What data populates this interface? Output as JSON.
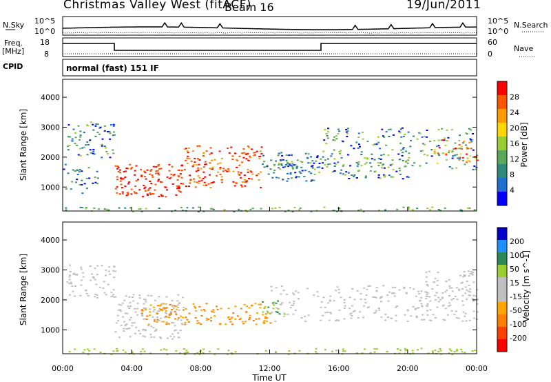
{
  "header": {
    "title": "Christmas Valley West (fitACF)",
    "beam": "Beam 16",
    "date": "19/Jun/2011"
  },
  "panels": {
    "nsky_label": "N.Sky",
    "nsky_ticks": [
      "10^5",
      "10^0"
    ],
    "nsearch_label": "N.Search",
    "nsearch_ticks": [
      "10^5",
      "10^0"
    ],
    "freq_label_1": "Freq.",
    "freq_label_2": "[MHz]",
    "freq_ticks": [
      "18",
      "8"
    ],
    "nave_label": "Nave",
    "nave_ticks": [
      "60",
      "0"
    ],
    "cpid_label": "CPID",
    "cpid_text": "normal (fast) 151 IF"
  },
  "colors": {
    "power": [
      "#0000ff",
      "#1f6fd0",
      "#2e8b7a",
      "#5aa85a",
      "#9acd32",
      "#ffd700",
      "#ff9900",
      "#ff5500",
      "#ff0000"
    ],
    "velocity": [
      "#ff0000",
      "#ff4000",
      "#ff8000",
      "#ffa500",
      "#c0c0c0",
      "#c0c0c0",
      "#9acd32",
      "#2e8b57",
      "#1e90ff",
      "#0000cd"
    ]
  },
  "chart_data": [
    {
      "type": "heatmap",
      "name": "power",
      "ylabel": "Slant Range [km]",
      "yticks": [
        "4000",
        "3000",
        "2000",
        "1000"
      ],
      "ylim": [
        200,
        4600
      ],
      "xlim_hours": [
        0,
        24
      ],
      "colorbar_label": "Power [dB]",
      "colorbar_ticks": [
        "28",
        "24",
        "20",
        "16",
        "12",
        "8",
        "4"
      ],
      "colorbar_range": [
        0,
        32
      ]
    },
    {
      "type": "heatmap",
      "name": "velocity",
      "ylabel": "Slant Range [km]",
      "yticks": [
        "4000",
        "3000",
        "2000",
        "1000"
      ],
      "ylim": [
        200,
        4600
      ],
      "xlim_hours": [
        0,
        24
      ],
      "colorbar_label": "Velocity [m s^-1]",
      "colorbar_ticks": [
        "200",
        "100",
        "50",
        "15",
        "-15",
        "-50",
        "-100",
        "-200"
      ]
    }
  ],
  "xaxis": {
    "ticks": [
      "00:00",
      "04:00",
      "08:00",
      "12:00",
      "16:00",
      "20:00",
      "00:00"
    ],
    "label": "Time UT"
  }
}
